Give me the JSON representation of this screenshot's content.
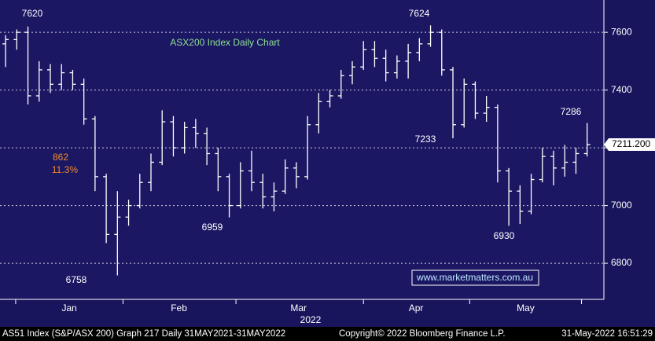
{
  "chart_data": {
    "type": "ohlc",
    "title": "ASX200 Index Daily Chart",
    "open": [
      7560,
      7575,
      7600,
      7380,
      7470,
      7420,
      7460,
      7420,
      7300,
      7100,
      6900,
      6960,
      7000,
      7080,
      7150,
      7290,
      7200,
      7270,
      7250,
      7180,
      7100,
      7000,
      7120,
      7080,
      7030,
      7050,
      7130,
      7100,
      7280,
      7360,
      7380,
      7450,
      7480,
      7540,
      7510,
      7460,
      7500,
      7530,
      7560,
      7600,
      7470,
      7280,
      7420,
      7320,
      7340,
      7120,
      7050,
      6980,
      7090,
      7170,
      7130,
      7150,
      7180
    ],
    "high": [
      7590,
      7610,
      7620,
      7500,
      7490,
      7490,
      7470,
      7440,
      7310,
      7110,
      7050,
      7020,
      7110,
      7180,
      7330,
      7310,
      7290,
      7300,
      7270,
      7200,
      7110,
      7150,
      7190,
      7110,
      7080,
      7160,
      7150,
      7310,
      7390,
      7400,
      7470,
      7500,
      7570,
      7570,
      7540,
      7520,
      7560,
      7580,
      7624,
      7610,
      7480,
      7440,
      7430,
      7380,
      7350,
      7130,
      7070,
      7110,
      7200,
      7190,
      7210,
      7200,
      7286
    ],
    "low": [
      7480,
      7540,
      7350,
      7360,
      7390,
      7400,
      7400,
      7280,
      7050,
      6870,
      6758,
      6930,
      6990,
      7050,
      7140,
      7170,
      7180,
      7200,
      7140,
      7050,
      6959,
      6990,
      7050,
      6990,
      6980,
      7040,
      7060,
      7090,
      7250,
      7340,
      7370,
      7420,
      7470,
      7480,
      7430,
      7440,
      7440,
      7500,
      7550,
      7450,
      7233,
      7270,
      7300,
      7290,
      7080,
      6930,
      6936,
      6970,
      7080,
      7070,
      7100,
      7110,
      7170
    ],
    "close": [
      7575,
      7600,
      7380,
      7470,
      7420,
      7460,
      7420,
      7300,
      7100,
      6900,
      6960,
      7000,
      7080,
      7150,
      7290,
      7200,
      7270,
      7250,
      7180,
      7100,
      7000,
      7120,
      7080,
      7030,
      7050,
      7130,
      7100,
      7280,
      7360,
      7380,
      7450,
      7480,
      7540,
      7510,
      7460,
      7500,
      7530,
      7560,
      7600,
      7470,
      7280,
      7420,
      7320,
      7340,
      7120,
      7050,
      6980,
      7090,
      7170,
      7130,
      7150,
      7180,
      7211.2
    ],
    "color": "#ffffff",
    "xlim": [
      0,
      54
    ],
    "ylim": [
      6675,
      7712
    ],
    "yticks": [
      6800,
      7000,
      7200,
      7400,
      7600
    ],
    "grid": true,
    "month_dividers": [
      1.4,
      11,
      21.1,
      32.5,
      42,
      52
    ],
    "months": [
      {
        "value": 6.2,
        "label": "Jan"
      },
      {
        "value": 16,
        "label": "Feb"
      },
      {
        "value": 26.7,
        "label": "Mar"
      },
      {
        "value": 37.2,
        "label": "Apr"
      },
      {
        "value": 47,
        "label": "May"
      }
    ],
    "year_label": "2022",
    "last_price": {
      "value": 7211.2,
      "label": "7211.200"
    },
    "peak_labels": [
      7620,
      7624,
      6758,
      6959,
      6930,
      7233,
      7286
    ],
    "change_points": 862,
    "change_percent": {
      "value": 11.3,
      "label": "11.3%"
    },
    "website": "www.marketmatters.com.au",
    "footer": {
      "left": "AS51 Index (S&P/ASX 200) Graph 217  Daily 31MAY2021-31MAY2022",
      "center": "Copyright© 2022 Bloomberg Finance L.P.",
      "right": "31-May-2022 16:51:29"
    }
  }
}
